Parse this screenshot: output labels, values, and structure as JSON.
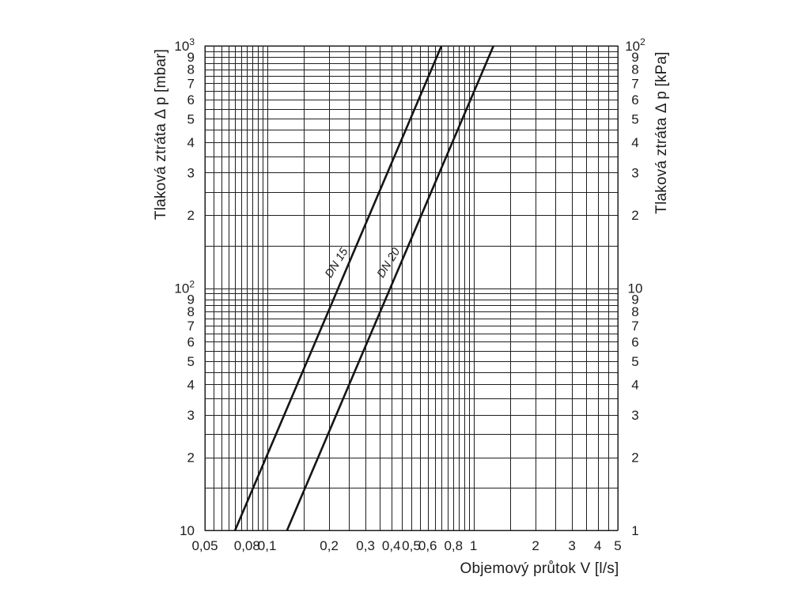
{
  "page": {
    "background": "#ffffff",
    "foreground": "#1d1d1d"
  },
  "chart_data": {
    "type": "line",
    "scale": "log-log",
    "title": "",
    "grid": {
      "style": "full log-log grid, minor lines at half steps of each decade (e.g. 0,05; 0,055 ... 0,095; 0,1; 0,15 ... 1; 1,5 ... 5)",
      "color": "#1f1f1f"
    },
    "x_axis": {
      "label": "Objemový průtok V [l/s]",
      "range": [
        0.05,
        5
      ],
      "ticks": [
        {
          "value": 0.05,
          "label": "0,05"
        },
        {
          "value": 0.08,
          "label": "0,08"
        },
        {
          "value": 0.1,
          "label": "0,1"
        },
        {
          "value": 0.2,
          "label": "0,2"
        },
        {
          "value": 0.3,
          "label": "0,3"
        },
        {
          "value": 0.4,
          "label": "0,4"
        },
        {
          "value": 0.5,
          "label": "0,5"
        },
        {
          "value": 0.6,
          "label": "0,6"
        },
        {
          "value": 0.8,
          "label": "0,8"
        },
        {
          "value": 1,
          "label": "1"
        },
        {
          "value": 2,
          "label": "2"
        },
        {
          "value": 3,
          "label": "3"
        },
        {
          "value": 4,
          "label": "4"
        },
        {
          "value": 5,
          "label": "5"
        }
      ]
    },
    "y_axis_left": {
      "label": "Tlaková ztráta Δ p [mbar]",
      "unit": "mbar",
      "range": [
        10,
        1000
      ],
      "ticks": [
        {
          "value": 1000,
          "label": "10^3"
        },
        {
          "value": 900,
          "label": "9"
        },
        {
          "value": 800,
          "label": "8"
        },
        {
          "value": 700,
          "label": "7"
        },
        {
          "value": 600,
          "label": "6"
        },
        {
          "value": 500,
          "label": "5"
        },
        {
          "value": 400,
          "label": "4"
        },
        {
          "value": 300,
          "label": "3"
        },
        {
          "value": 200,
          "label": "2"
        },
        {
          "value": 100,
          "label": "10^2"
        },
        {
          "value": 90,
          "label": "9"
        },
        {
          "value": 80,
          "label": "8"
        },
        {
          "value": 70,
          "label": "7"
        },
        {
          "value": 60,
          "label": "6"
        },
        {
          "value": 50,
          "label": "5"
        },
        {
          "value": 40,
          "label": "4"
        },
        {
          "value": 30,
          "label": "3"
        },
        {
          "value": 20,
          "label": "2"
        },
        {
          "value": 10,
          "label": "10"
        }
      ]
    },
    "y_axis_right": {
      "label": "Tlaková ztráta Δ p [kPa]",
      "unit": "kPa",
      "range": [
        1,
        100
      ],
      "ticks": [
        {
          "value": 100,
          "label": "10^2"
        },
        {
          "value": 90,
          "label": "9"
        },
        {
          "value": 80,
          "label": "8"
        },
        {
          "value": 70,
          "label": "7"
        },
        {
          "value": 60,
          "label": "6"
        },
        {
          "value": 50,
          "label": "5"
        },
        {
          "value": 40,
          "label": "4"
        },
        {
          "value": 30,
          "label": "3"
        },
        {
          "value": 20,
          "label": "2"
        },
        {
          "value": 10,
          "label": "10"
        },
        {
          "value": 9,
          "label": "9"
        },
        {
          "value": 8,
          "label": "8"
        },
        {
          "value": 7,
          "label": "7"
        },
        {
          "value": 6,
          "label": "6"
        },
        {
          "value": 5,
          "label": "5"
        },
        {
          "value": 4,
          "label": "4"
        },
        {
          "value": 3,
          "label": "3"
        },
        {
          "value": 2,
          "label": "2"
        },
        {
          "value": 1,
          "label": "1"
        }
      ]
    },
    "series": [
      {
        "name": "DN 15",
        "points_mbar": [
          [
            0.07,
            10
          ],
          [
            0.7,
            1000
          ]
        ]
      },
      {
        "name": "DN 20",
        "points_mbar": [
          [
            0.125,
            10
          ],
          [
            1.25,
            1000
          ]
        ]
      }
    ],
    "colors": {
      "series_line": "#151515",
      "grid_line": "#1f1f1f",
      "text": "#1d1d1d",
      "background": "#ffffff"
    }
  }
}
